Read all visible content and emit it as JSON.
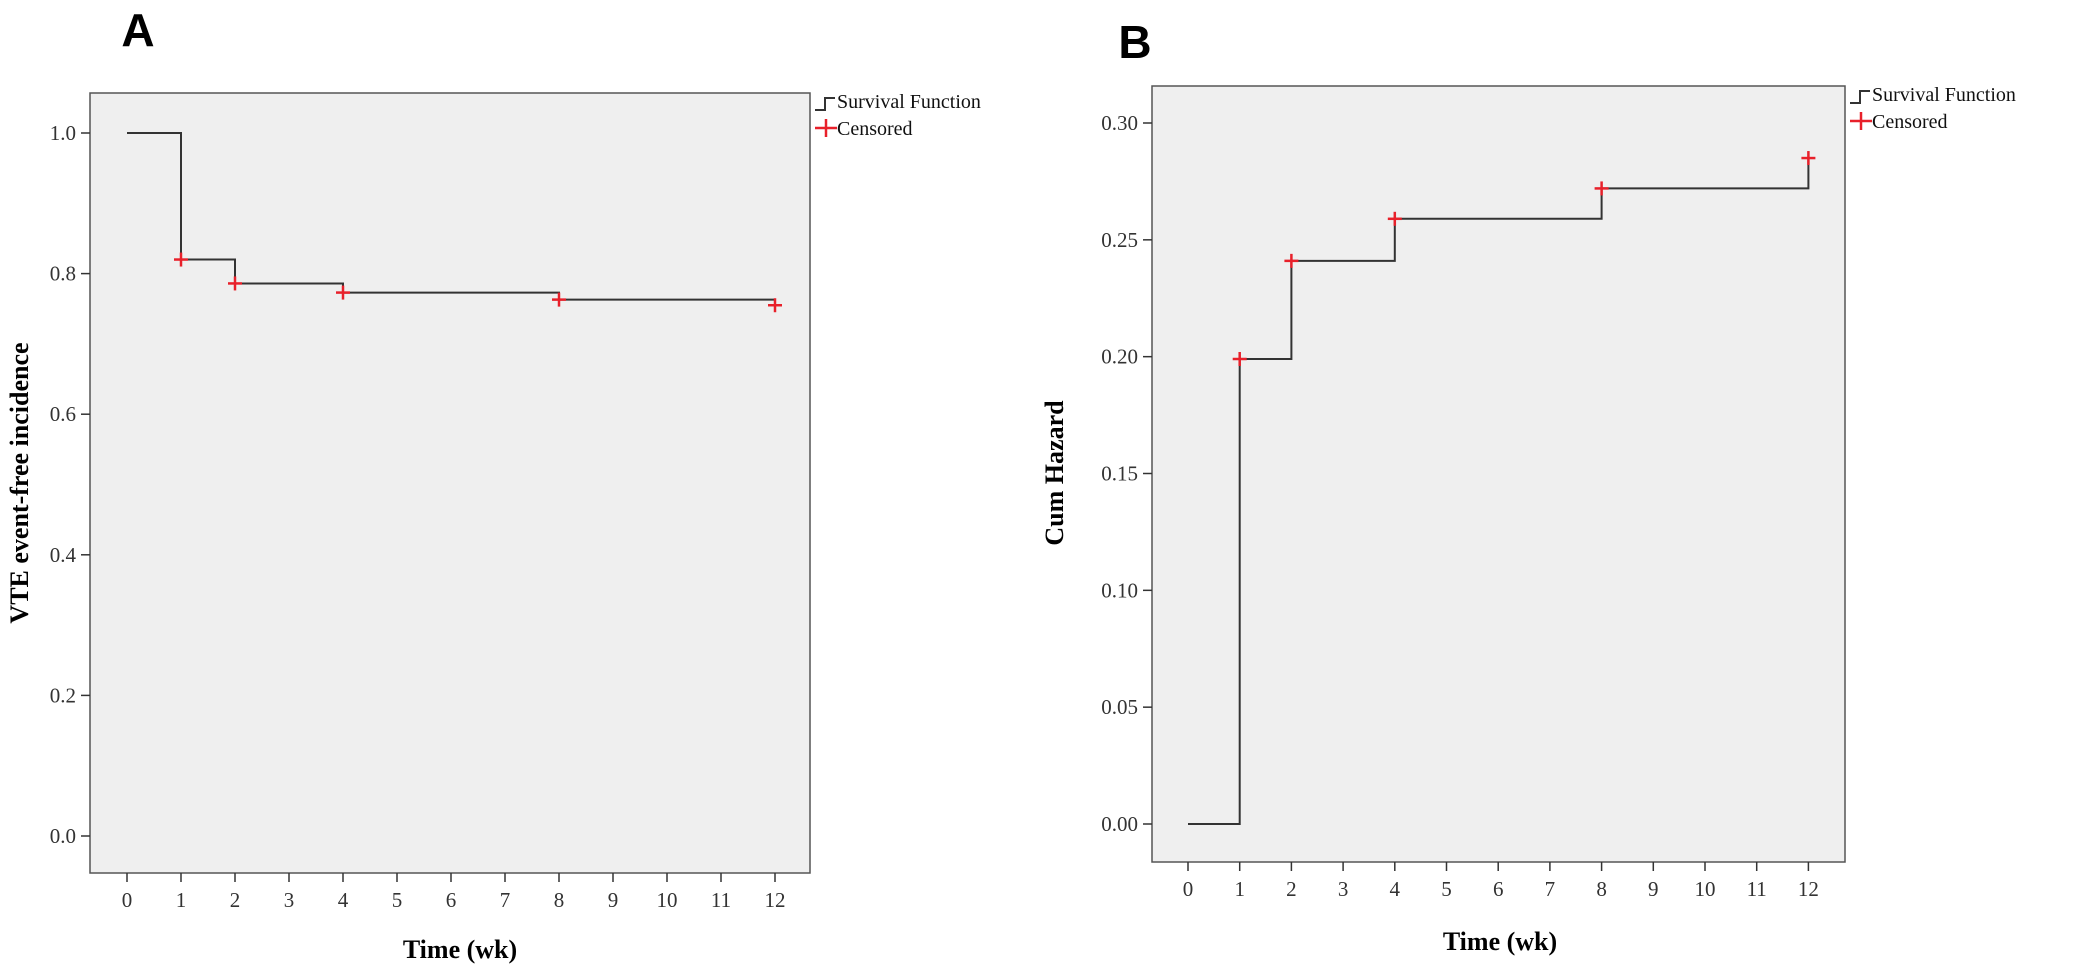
{
  "chart_data": [
    {
      "type": "line",
      "panel_label": "A",
      "xlabel": "Time (wk)",
      "ylabel": "VTE event-free incidence",
      "xlim": [
        0,
        12
      ],
      "ylim": [
        0,
        1.0
      ],
      "x_ticks": [
        "0",
        "1",
        "2",
        "3",
        "4",
        "5",
        "6",
        "7",
        "8",
        "9",
        "10",
        "11",
        "12"
      ],
      "y_ticks": [
        "0.0",
        "0.2",
        "0.4",
        "0.6",
        "0.8",
        "1.0"
      ],
      "grid": false,
      "legend_position": "top-right",
      "legend": [
        "Survival Function",
        "Censored"
      ],
      "series": [
        {
          "name": "Survival Function",
          "step": true,
          "x": [
            0,
            1,
            2,
            4,
            8,
            12
          ],
          "y": [
            1.0,
            0.82,
            0.786,
            0.773,
            0.763,
            0.755
          ]
        },
        {
          "name": "Censored",
          "marker": "+",
          "x": [
            1,
            2,
            4,
            8,
            12
          ],
          "y": [
            0.82,
            0.786,
            0.773,
            0.763,
            0.755
          ]
        }
      ],
      "colors": {
        "survival": "#333333",
        "censored": "#e8202a",
        "plot_background": "#efefef"
      }
    },
    {
      "type": "line",
      "panel_label": "B",
      "xlabel": "Time (wk)",
      "ylabel": "Cum Hazard",
      "xlim": [
        0,
        12
      ],
      "ylim": [
        0,
        0.3
      ],
      "x_ticks": [
        "0",
        "1",
        "2",
        "3",
        "4",
        "5",
        "6",
        "7",
        "8",
        "9",
        "10",
        "11",
        "12"
      ],
      "y_ticks": [
        "0.00",
        "0.05",
        "0.10",
        "0.15",
        "0.20",
        "0.25",
        "0.30"
      ],
      "grid": false,
      "legend_position": "top-right",
      "legend": [
        "Survival Function",
        "Censored"
      ],
      "series": [
        {
          "name": "Survival Function",
          "step": true,
          "x": [
            0,
            1,
            2,
            4,
            8,
            12
          ],
          "y": [
            0.0,
            0.199,
            0.241,
            0.259,
            0.272,
            0.285
          ]
        },
        {
          "name": "Censored",
          "marker": "+",
          "x": [
            1,
            2,
            4,
            8,
            12
          ],
          "y": [
            0.199,
            0.241,
            0.259,
            0.272,
            0.285
          ]
        }
      ],
      "colors": {
        "survival": "#333333",
        "censored": "#e8202a",
        "plot_background": "#efefef"
      }
    }
  ]
}
